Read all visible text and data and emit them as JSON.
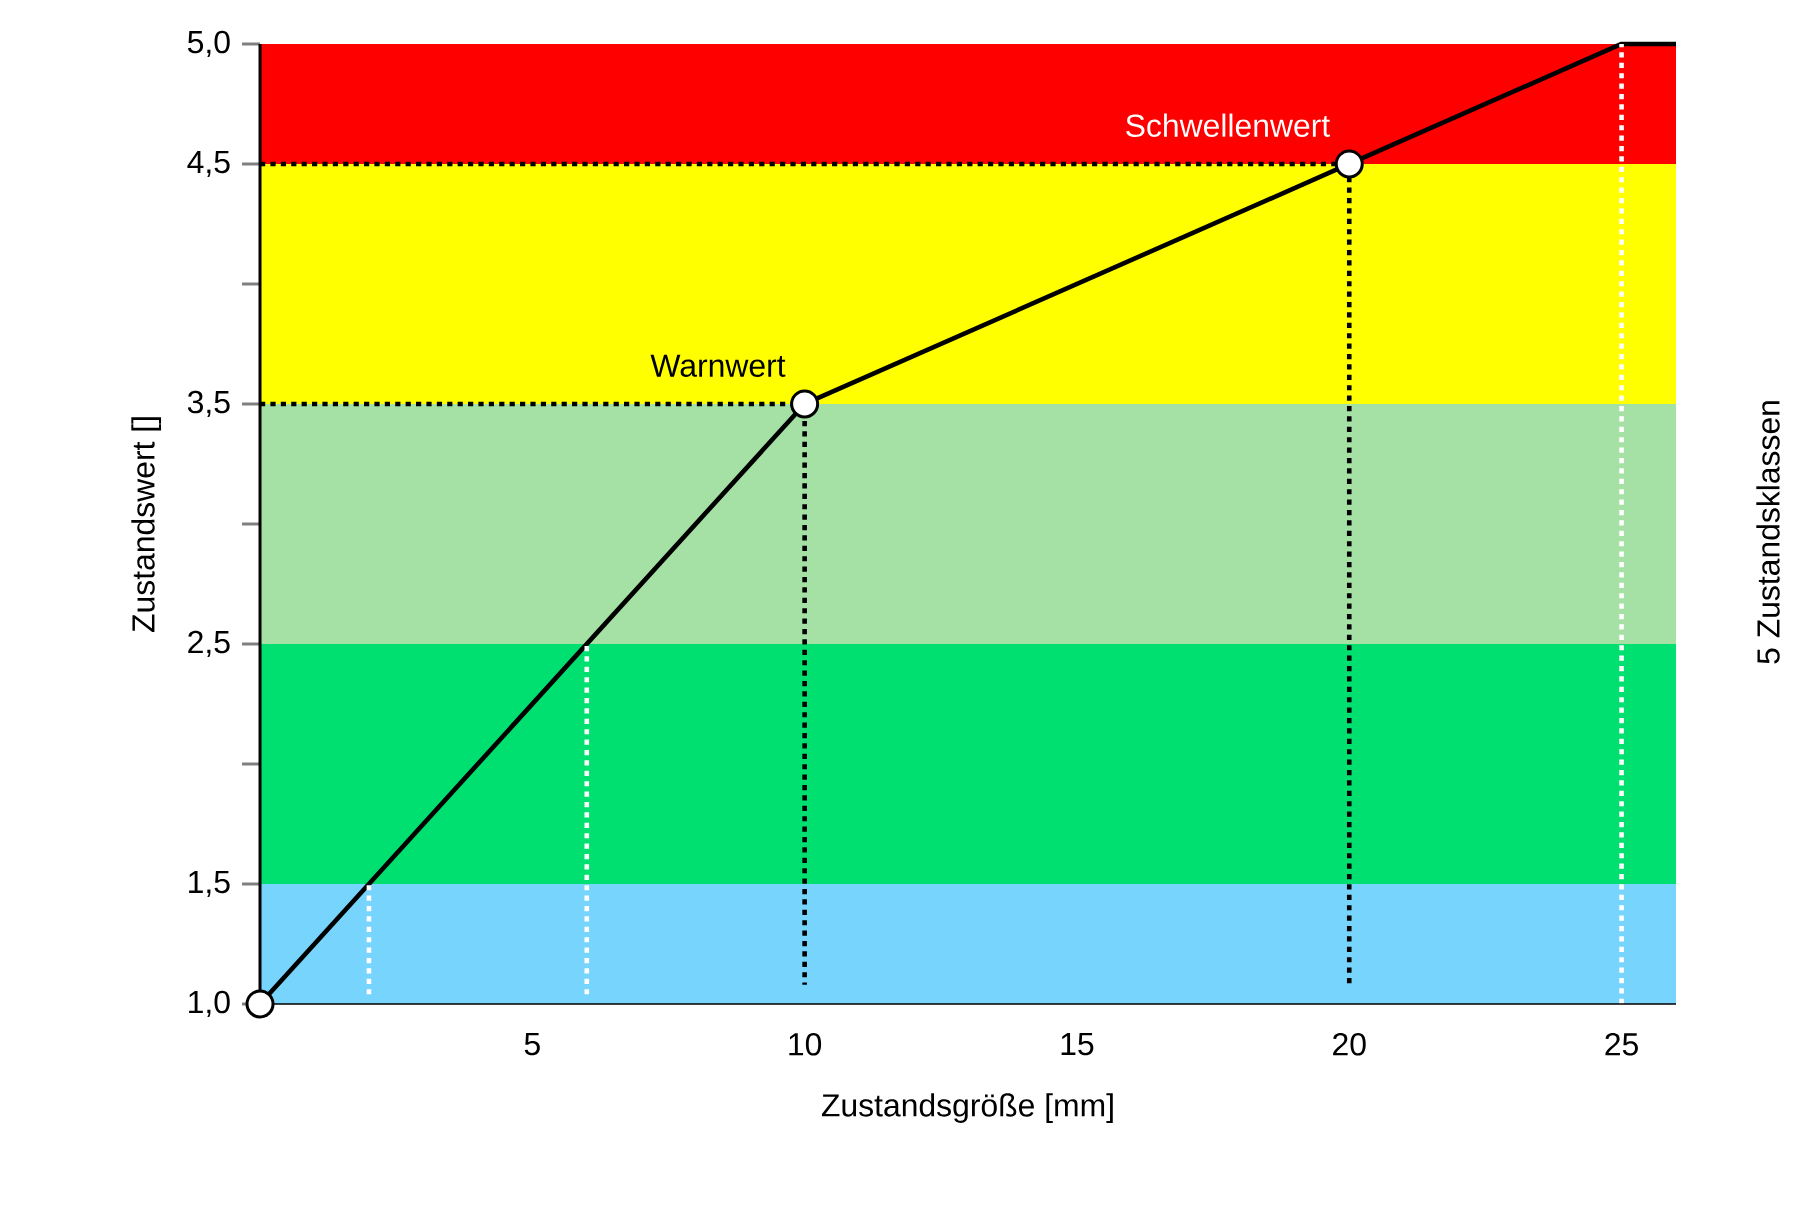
{
  "chart_data": {
    "type": "line",
    "xlabel": "Zustandsgröße [mm]",
    "ylabel": "Zustandswert []",
    "xlim": [
      0,
      26
    ],
    "ylim": [
      1.0,
      5.0
    ],
    "xticks": [
      5,
      10,
      15,
      20,
      25
    ],
    "yticks": [
      {
        "value": 1.0,
        "label": "1,0"
      },
      {
        "value": 1.5,
        "label": "1,5"
      },
      {
        "value": 2.0,
        "label": null
      },
      {
        "value": 2.5,
        "label": "2,5"
      },
      {
        "value": 3.0,
        "label": null
      },
      {
        "value": 3.5,
        "label": "3,5"
      },
      {
        "value": 4.0,
        "label": null
      },
      {
        "value": 4.5,
        "label": "4,5"
      },
      {
        "value": 5.0,
        "label": "5,0"
      }
    ],
    "bands": [
      {
        "axis": "y",
        "from": 1.0,
        "to": 1.5,
        "color": "#77d4fc"
      },
      {
        "axis": "y",
        "from": 1.5,
        "to": 2.5,
        "color": "#00e070"
      },
      {
        "axis": "y",
        "from": 2.5,
        "to": 3.5,
        "color": "#a5e0a5"
      },
      {
        "axis": "y",
        "from": 3.5,
        "to": 4.5,
        "color": "#ffff00"
      },
      {
        "axis": "y",
        "from": 4.5,
        "to": 5.0,
        "color": "#ff0000"
      }
    ],
    "series": [
      {
        "x": [
          0,
          10,
          20,
          25,
          26
        ],
        "values": [
          1.0,
          3.5,
          4.5,
          5.0,
          5.0
        ],
        "color": "#000000",
        "line_style": "solid"
      },
      {
        "x": [
          2,
          2
        ],
        "values": [
          1.04,
          1.5
        ],
        "color": "#ffffff",
        "line_style": "dotted"
      },
      {
        "x": [
          6,
          6
        ],
        "values": [
          1.04,
          2.5
        ],
        "color": "#ffffff",
        "line_style": "dotted"
      },
      {
        "x": [
          0,
          10,
          10
        ],
        "values": [
          3.5,
          3.5,
          1.08
        ],
        "color": "#000000",
        "line_style": "dotted"
      },
      {
        "x": [
          0,
          20,
          20
        ],
        "values": [
          4.5,
          4.5,
          1.07
        ],
        "color": "#000000",
        "line_style": "dotted"
      },
      {
        "type": "scatter",
        "x": [
          0,
          10,
          20
        ],
        "values": [
          1.0,
          3.5,
          4.5
        ],
        "color": "#ffffff"
      }
    ],
    "annotations": [
      {
        "text": "Warnwert",
        "x": 10,
        "y": 3.5
      },
      {
        "text": "Schwellenwert",
        "x": 20,
        "y": 4.5
      },
      "5 Zustandsklassen"
    ],
    "ref_lines": [
      {
        "axis": "x",
        "value": 25,
        "color": "#ffffff",
        "line_style": "dotted"
      }
    ],
    "grid": false
  }
}
